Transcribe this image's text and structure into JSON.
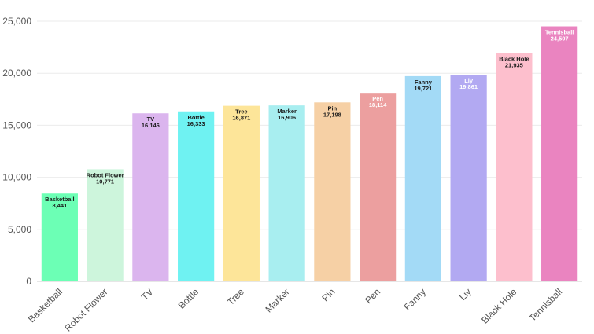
{
  "chart_data": {
    "type": "bar",
    "title": "",
    "xlabel": "",
    "ylabel": "",
    "ylim": [
      0,
      25000
    ],
    "y_ticks": [
      "0",
      "5,000",
      "10,000",
      "15,000",
      "20,000",
      "25,000"
    ],
    "y_tick_values": [
      0,
      5000,
      10000,
      15000,
      20000,
      25000
    ],
    "grid": true,
    "legend": "none",
    "categories": [
      "Basketball",
      "Robot Flower",
      "TV",
      "Bottle",
      "Tree",
      "Marker",
      "Pin",
      "Pen",
      "Fanny",
      "Liy",
      "Black Hole",
      "Tennisball"
    ],
    "values": [
      8441,
      10771,
      16146,
      16333,
      16871,
      16906,
      17198,
      18114,
      19721,
      19861,
      21935,
      24507
    ],
    "value_labels": [
      "8,441",
      "10,771",
      "16,146",
      "16,333",
      "16,871",
      "16,906",
      "17,198",
      "18,114",
      "19,721",
      "19,861",
      "21,935",
      "24,507"
    ],
    "colors": [
      "#6cffb5",
      "#cdf5dc",
      "#dbb5ee",
      "#6ff2f2",
      "#fde599",
      "#a8eef0",
      "#f6d0a5",
      "#ec9f9f",
      "#a3daf6",
      "#b2a9f2",
      "#fdbfcd",
      "#ea84c0"
    ],
    "label_colors": [
      "#1a1a1a",
      "#1a1a1a",
      "#1a1a1a",
      "#1a1a1a",
      "#1a1a1a",
      "#1a1a1a",
      "#1a1a1a",
      "#ffffff",
      "#1a1a1a",
      "#ffffff",
      "#1a1a1a",
      "#ffffff"
    ]
  }
}
